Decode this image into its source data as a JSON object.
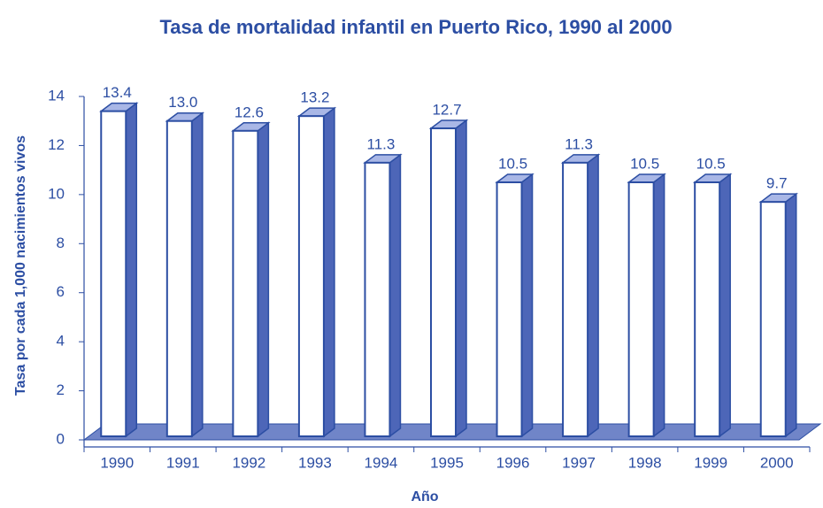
{
  "chart_data": {
    "type": "bar3d",
    "title": "Tasa de mortalidad infantil en Puerto Rico, 1990 al 2000",
    "x_label": "Año",
    "y_label": "Tasa por cada 1,000 nacimientos vivos",
    "categories": [
      "1990",
      "1991",
      "1992",
      "1993",
      "1994",
      "1995",
      "1996",
      "1997",
      "1998",
      "1999",
      "2000"
    ],
    "values": [
      13.4,
      13,
      12.6,
      13.2,
      11.3,
      12.7,
      10.5,
      11.3,
      10.5,
      10.5,
      9.7
    ],
    "value_labels": [
      "13.4",
      "13.0",
      "12.6",
      "13.2",
      "11.3",
      "12.7",
      "10.5",
      "11.3",
      "10.5",
      "10.5",
      "9.7"
    ],
    "color": "#2c4ea3",
    "ylim": [
      0,
      14
    ],
    "yticks": [
      0,
      2,
      4,
      6,
      8,
      10,
      12,
      14
    ],
    "grid": false
  }
}
